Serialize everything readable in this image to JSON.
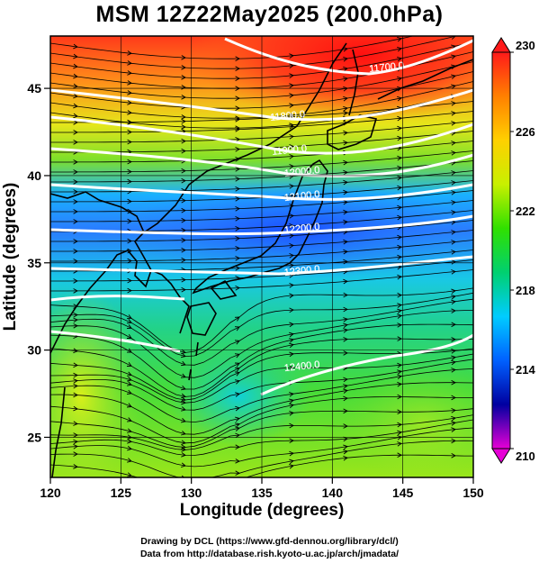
{
  "title": "MSM 12Z22May2025 (200.0hPa)",
  "xlabel": "Longitude (degrees)",
  "ylabel": "Latitude  (degrees)",
  "x_ticks": [
    "120",
    "125",
    "130",
    "135",
    "140",
    "145",
    "150"
  ],
  "y_ticks": [
    "25",
    "30",
    "35",
    "40",
    "45"
  ],
  "colorbar_ticks": [
    "230",
    "226",
    "222",
    "218",
    "214",
    "210"
  ],
  "contour_labels": [
    "11700.0",
    "11800.0",
    "11900.0",
    "12000.0",
    "12100.0",
    "12200.0",
    "12300.0",
    "12400.0"
  ],
  "credits": {
    "line1": "Drawing by DCL (https://www.gfd-dennou.org/library/dcl/)",
    "line2": "Data from http://database.rish.kyoto-u.ac.jp/arch/jmadata/"
  },
  "chart_data": {
    "type": "heatmap",
    "field": "temperature shading with geopotential height contours and wind streamlines",
    "x_range": [
      120,
      150
    ],
    "y_range": [
      22.7,
      48
    ],
    "colorbar_range": [
      210,
      230
    ],
    "colorbar_colors": [
      "#e600d6",
      "#0000a0",
      "#0060ff",
      "#00ccff",
      "#00d070",
      "#30e000",
      "#c8f000",
      "#ffd000",
      "#ff8000",
      "#ff1a1a"
    ],
    "grid": true
  }
}
